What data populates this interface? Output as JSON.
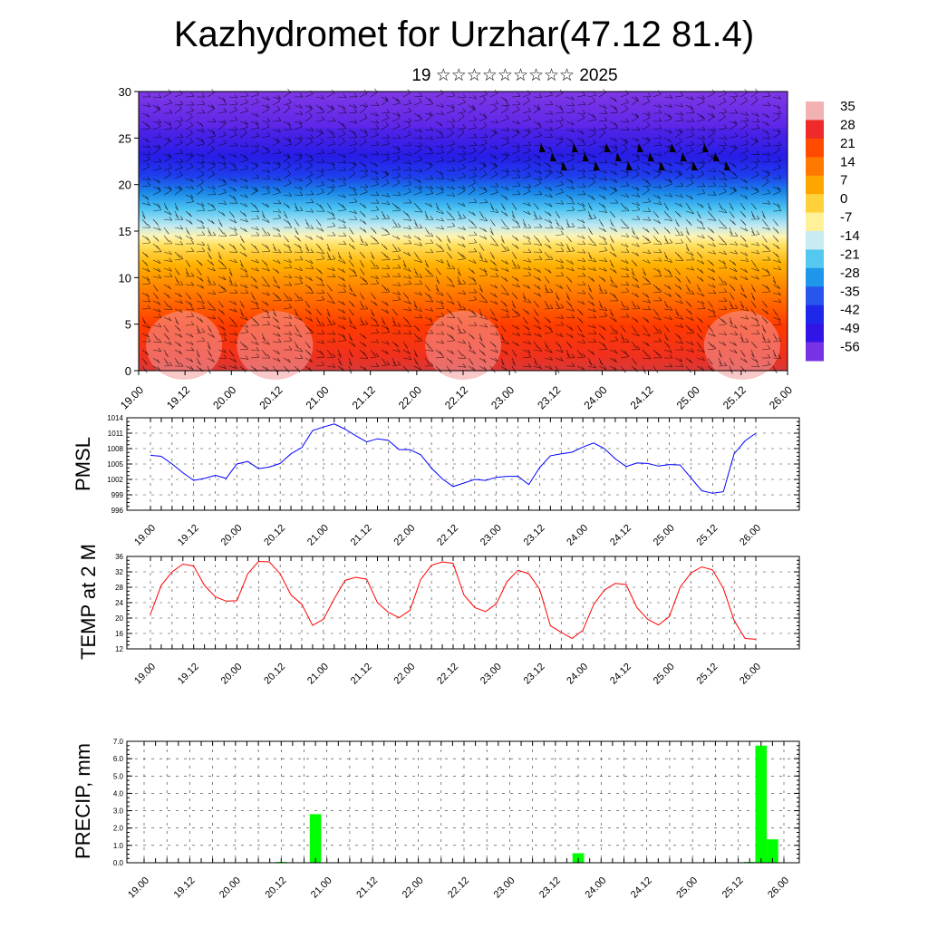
{
  "title": "Kazhydromet for Urzhar(47.12 81.4)",
  "subtitle": "19 ☆☆☆☆☆☆☆☆☆ 2025",
  "colors": {
    "pmsl_line": "#0000ff",
    "temp_line": "#ff0000",
    "precip_bar": "#00ff00",
    "wind_barbs": "#000000"
  },
  "time_labels": [
    "19.00",
    "19.12",
    "20.00",
    "20.12",
    "21.00",
    "21.12",
    "22.00",
    "22.12",
    "23.00",
    "23.12",
    "24.00",
    "24.12",
    "25.00",
    "25.12",
    "26.00"
  ],
  "chart_data": [
    {
      "type": "heatmap",
      "name": "cross-section",
      "x_tick_labels": [
        "19.00",
        "19.12",
        "20.00",
        "20.12",
        "21.00",
        "21.12",
        "22.00",
        "22.12",
        "23.00",
        "23.12",
        "24.00",
        "24.12",
        "25.00",
        "25.12",
        "26.00"
      ],
      "y_tick_labels": [
        "0",
        "5",
        "10",
        "15",
        "20",
        "25",
        "30"
      ],
      "ylim": [
        0,
        30
      ],
      "colorbar_labels": [
        "35",
        "28",
        "21",
        "14",
        "7",
        "0",
        "-7",
        "-14",
        "-21",
        "-28",
        "-35",
        "-42",
        "-49",
        "-56"
      ],
      "colorbar_colors": [
        "#f2b2b2",
        "#ee2a2a",
        "#ff4a00",
        "#ff7800",
        "#ffa500",
        "#ffd23c",
        "#fff199",
        "#c8ecf2",
        "#55c8f0",
        "#1e96ea",
        "#2855ee",
        "#1e28e8",
        "#3214e6",
        "#7832e6"
      ],
      "overlay": "wind barbs"
    },
    {
      "type": "line",
      "ylabel": "PMSL",
      "yticks": [
        "996",
        "999",
        "1002",
        "1005",
        "1008",
        "1011",
        "1014"
      ],
      "ylim": [
        996,
        1014
      ],
      "x_tick_labels": [
        "19.00",
        "19.12",
        "20.00",
        "20.12",
        "21.00",
        "21.12",
        "22.00",
        "22.12",
        "23.00",
        "23.12",
        "24.00",
        "24.12",
        "25.00",
        "25.12",
        "26.00"
      ],
      "values": [
        1006.7,
        1006.5,
        1005,
        1003.3,
        1001.8,
        1002.2,
        1002.8,
        1002.2,
        1005,
        1005.5,
        1004.1,
        1004.4,
        1005.1,
        1007,
        1008.2,
        1011.5,
        1012.2,
        1012.8,
        1011.8,
        1010.5,
        1009.3,
        1009.9,
        1009.6,
        1007.8,
        1007.8,
        1006.8,
        1004.2,
        1002.1,
        1000.6,
        1001.3,
        1002,
        1001.8,
        1002.4,
        1002.6,
        1002.6,
        1001,
        1004.3,
        1006.6,
        1007,
        1007.3,
        1008.3,
        1009.1,
        1008,
        1006,
        1004.5,
        1005.2,
        1005.1,
        1004.6,
        1004.9,
        1004.8,
        1002.3,
        999.8,
        999.3,
        999.6,
        1007,
        1009.5,
        1011
      ]
    },
    {
      "type": "line",
      "ylabel": "TEMP at 2 M",
      "yticks": [
        "12",
        "16",
        "20",
        "24",
        "28",
        "32",
        "36"
      ],
      "ylim": [
        12,
        36
      ],
      "x_tick_labels": [
        "19.00",
        "19.12",
        "20.00",
        "20.12",
        "21.00",
        "21.12",
        "22.00",
        "22.12",
        "23.00",
        "23.12",
        "24.00",
        "24.12",
        "25.00",
        "25.12",
        "26.00"
      ],
      "values": [
        21,
        28.5,
        32,
        34,
        33.5,
        28.5,
        25.5,
        24.4,
        24.5,
        31.5,
        34.7,
        34.6,
        31.5,
        26,
        23.6,
        18.1,
        19.7,
        25,
        29.8,
        30.6,
        30.1,
        24,
        21.5,
        20.1,
        22,
        30,
        33.7,
        34.6,
        34.2,
        26,
        22.7,
        21.7,
        23.7,
        29.5,
        32.4,
        31.5,
        27.5,
        18,
        16.3,
        14.7,
        16.8,
        23.5,
        27.3,
        29,
        28.7,
        22.7,
        19.7,
        18.2,
        20.4,
        28,
        31.7,
        33.3,
        32.5,
        27.7,
        19.4,
        14.7,
        14.5
      ]
    },
    {
      "type": "bar",
      "ylabel": "PRECIP, mm",
      "yticks": [
        "0.0",
        "1.0",
        "2.0",
        "3.0",
        "4.0",
        "5.0",
        "6.0",
        "7.0"
      ],
      "ylim": [
        0,
        7
      ],
      "x_tick_labels": [
        "19.00",
        "19.12",
        "20.00",
        "20.12",
        "21.00",
        "21.12",
        "22.00",
        "22.12",
        "23.00",
        "23.12",
        "24.00",
        "24.12",
        "25.00",
        "25.12",
        "26.00"
      ],
      "values": [
        0,
        0,
        0,
        0,
        0,
        0,
        0,
        0,
        0,
        0,
        0,
        0,
        0.05,
        0,
        0,
        2.8,
        0,
        0,
        0,
        0,
        0,
        0,
        0,
        0,
        0,
        0,
        0,
        0,
        0,
        0,
        0,
        0,
        0,
        0,
        0,
        0,
        0,
        0,
        0.55,
        0,
        0,
        0,
        0,
        0,
        0,
        0,
        0,
        0,
        0,
        0,
        0,
        0,
        0,
        0.05,
        6.75,
        1.35,
        0
      ]
    }
  ]
}
